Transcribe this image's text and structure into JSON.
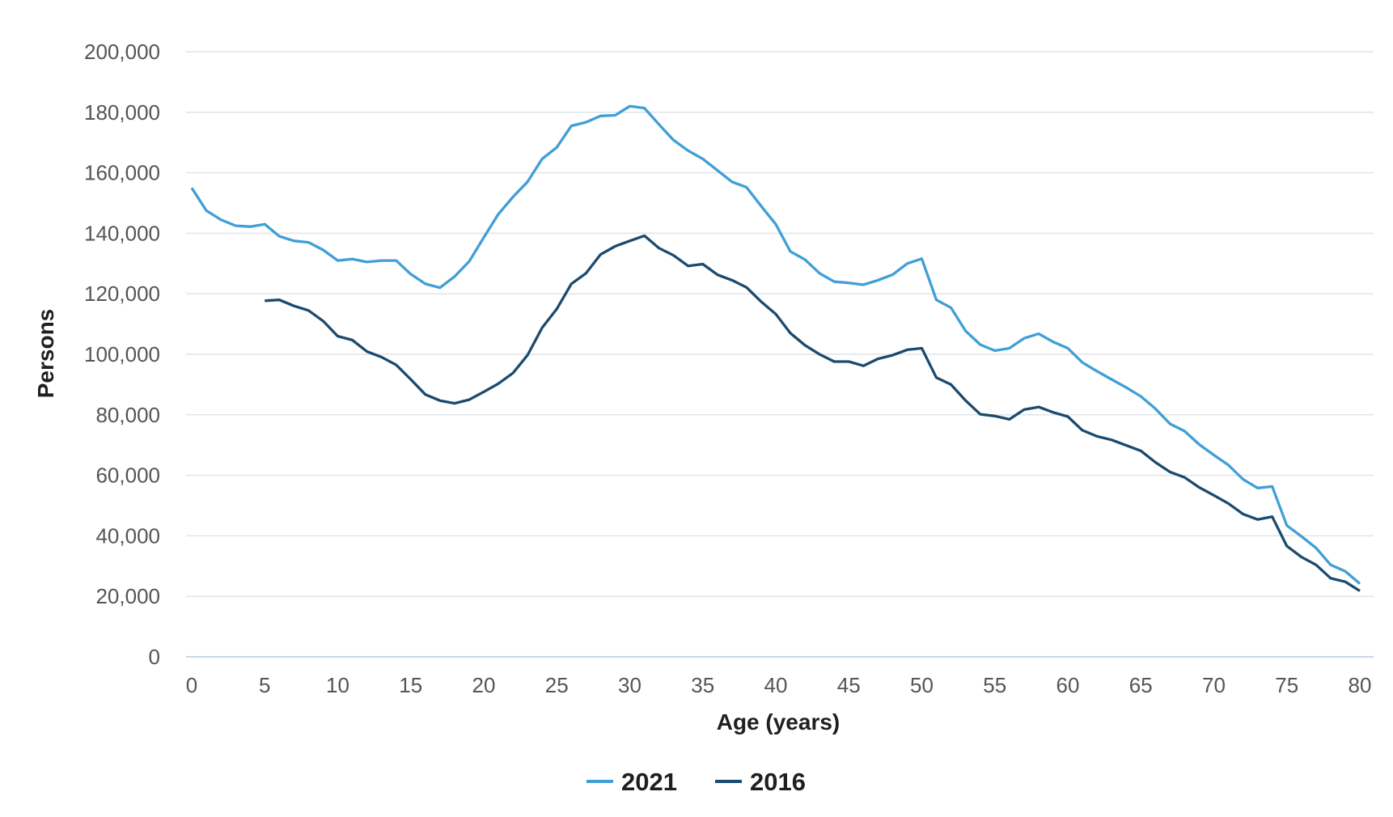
{
  "chart_data": {
    "type": "line",
    "title": "",
    "xlabel": "Age (years)",
    "ylabel": "Persons",
    "xlim": [
      0,
      80
    ],
    "ylim": [
      0,
      200000
    ],
    "xticks": [
      0,
      5,
      10,
      15,
      20,
      25,
      30,
      35,
      40,
      45,
      50,
      55,
      60,
      65,
      70,
      75,
      80
    ],
    "yticks": [
      0,
      20000,
      40000,
      60000,
      80000,
      100000,
      120000,
      140000,
      160000,
      180000,
      200000
    ],
    "ytick_labels": [
      "0",
      "20,000",
      "40,000",
      "60,000",
      "80,000",
      "100,000",
      "120,000",
      "140,000",
      "160,000",
      "180,000",
      "200,000"
    ],
    "grid": "horizontal",
    "legend_position": "bottom",
    "series": [
      {
        "name": "2021",
        "color": "#3f9fd6",
        "x_start": 0,
        "values": [
          155000,
          147500,
          144500,
          142500,
          142200,
          143000,
          139000,
          137500,
          137000,
          134500,
          131000,
          131500,
          130500,
          131000,
          131000,
          126500,
          123300,
          122000,
          125700,
          130700,
          138600,
          146300,
          152000,
          157000,
          164600,
          168400,
          175500,
          176700,
          178800,
          179000,
          182000,
          181400,
          176000,
          170800,
          167300,
          164600,
          160800,
          157000,
          155200,
          149000,
          143000,
          134000,
          131300,
          126800,
          124000,
          123600,
          123000,
          124500,
          126300,
          130000,
          131600,
          118000,
          115400,
          107700,
          103200,
          101200,
          102000,
          105300,
          106800,
          104100,
          102000,
          97300,
          94400,
          91700,
          89000,
          86100,
          82000,
          77000,
          74600,
          70200,
          66700,
          63400,
          58700,
          55800,
          56300,
          43400,
          39800,
          36000,
          30400,
          28300,
          24200
        ]
      },
      {
        "name": "2016",
        "color": "#1a4a6e",
        "x_start": 5,
        "values": [
          117700,
          118000,
          116000,
          114500,
          111000,
          106000,
          104700,
          100900,
          99100,
          96500,
          91700,
          86700,
          84700,
          83800,
          85000,
          87600,
          90300,
          93800,
          99700,
          108800,
          115000,
          123300,
          126800,
          133000,
          135700,
          137500,
          139200,
          135100,
          132700,
          129200,
          129800,
          126300,
          124500,
          122100,
          117400,
          113300,
          107000,
          103000,
          100000,
          97600,
          97600,
          96200,
          98500,
          99700,
          101500,
          102000,
          92300,
          90000,
          84700,
          80200,
          79600,
          78500,
          81700,
          82600,
          80800,
          79400,
          74900,
          72900,
          71700,
          69900,
          68100,
          64300,
          61100,
          59300,
          56000,
          53400,
          50700,
          47200,
          45400,
          46300,
          36600,
          33000,
          30400,
          26000,
          24800,
          21800
        ]
      }
    ]
  }
}
